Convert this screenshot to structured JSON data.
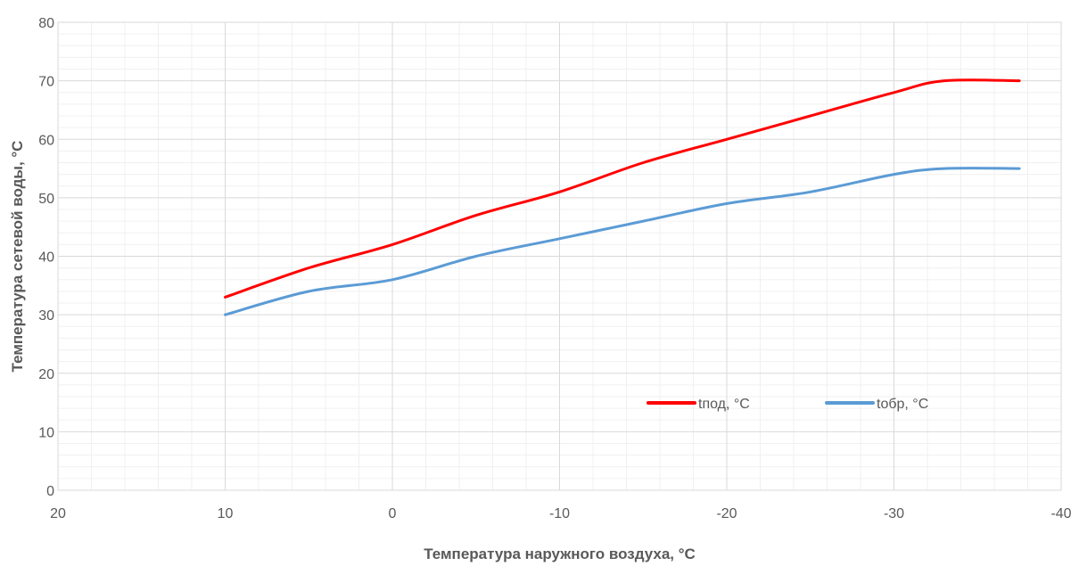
{
  "chart_data": {
    "type": "line",
    "title": "",
    "xlabel": "Температура наружного воздуха, °C",
    "ylabel": "Температура сетевой воды, °C",
    "xlim": [
      20,
      -40
    ],
    "ylim": [
      0,
      80
    ],
    "x_reversed": true,
    "x_ticks": [
      20,
      10,
      0,
      -10,
      -20,
      -30,
      -40
    ],
    "x_tick_labels": [
      "20",
      "10",
      "0",
      "-10",
      "-20",
      "-30",
      "-40"
    ],
    "y_ticks": [
      0,
      10,
      20,
      30,
      40,
      50,
      60,
      70,
      80
    ],
    "y_tick_labels": [
      "0",
      "10",
      "20",
      "30",
      "40",
      "50",
      "60",
      "70",
      "80"
    ],
    "grid": "major and minor",
    "legend_position": "inside-lower-right",
    "series": [
      {
        "name": "tпод, °C",
        "color": "#ff0000",
        "x": [
          10,
          5,
          0,
          -5,
          -10,
          -15,
          -20,
          -25,
          -30,
          -33,
          -37.5
        ],
        "y": [
          33,
          38,
          42,
          47,
          51,
          56,
          60,
          64,
          68,
          70,
          70
        ]
      },
      {
        "name": "tобр, °C",
        "color": "#5b9bd5",
        "x": [
          10,
          5,
          0,
          -5,
          -10,
          -15,
          -20,
          -25,
          -30,
          -33,
          -37.5
        ],
        "y": [
          30,
          34,
          36,
          40,
          43,
          46,
          49,
          51,
          54,
          55,
          55
        ]
      }
    ]
  }
}
